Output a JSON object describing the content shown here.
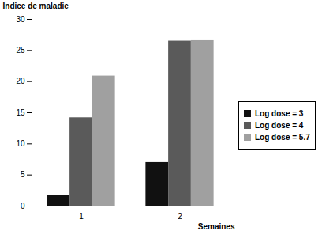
{
  "chart_data": {
    "type": "bar",
    "y_label": "Indice de maladie",
    "x_label": "Semaines",
    "categories": [
      "1",
      "2"
    ],
    "series": [
      {
        "name": "Log dose = 3",
        "color": "#111111",
        "values": [
          1.7,
          7
        ]
      },
      {
        "name": "Log dose = 4",
        "color": "#5a5a5a",
        "values": [
          14.2,
          26.5
        ]
      },
      {
        "name": "Log dose = 5.7",
        "color": "#a0a0a0",
        "values": [
          20.9,
          26.7
        ]
      }
    ],
    "ylim": [
      0,
      30
    ],
    "yticks": [
      0,
      5,
      10,
      15,
      20,
      25,
      30
    ],
    "grid": false,
    "legend": "right"
  }
}
